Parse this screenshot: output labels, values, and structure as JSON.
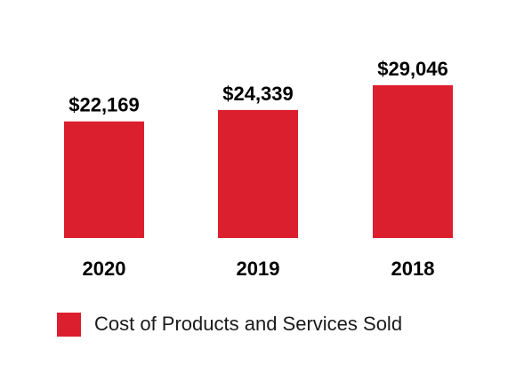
{
  "chart_data": {
    "type": "bar",
    "categories": [
      "2020",
      "2019",
      "2018"
    ],
    "series": [
      {
        "name": "Cost of Products and Services Sold",
        "values": [
          22169,
          24339,
          29046
        ],
        "value_labels": [
          "$22,169",
          "$24,339",
          "$29,046"
        ],
        "color": "#dc1f2e"
      }
    ],
    "ylim": [
      0,
      29046
    ],
    "grid": false,
    "legend_placement": "bottom-left"
  }
}
